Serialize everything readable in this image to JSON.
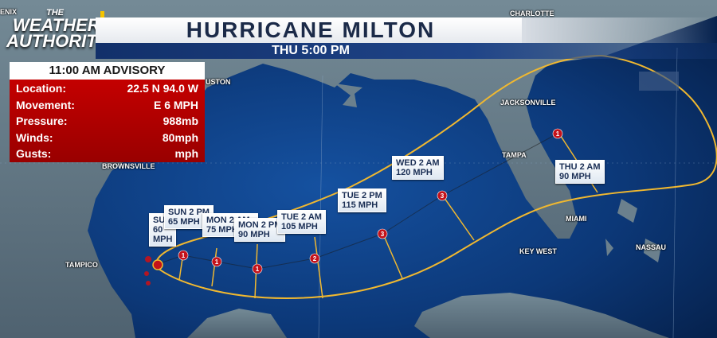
{
  "header": {
    "logo_line1": "THE",
    "logo_line2": "WEATHER",
    "logo_line3": "AUTHORITY",
    "title": "HURRICANE MILTON",
    "subtitle": "THU 5:00 PM"
  },
  "advisory": {
    "title": "11:00 AM ADVISORY",
    "rows": [
      {
        "label": "Location:",
        "value": "22.5 N 94.0 W"
      },
      {
        "label": "Movement:",
        "value": "E 6 MPH"
      },
      {
        "label": "Pressure:",
        "value": "988mb"
      },
      {
        "label": "Winds:",
        "value": "80mph"
      },
      {
        "label": "Gusts:",
        "value": "mph"
      }
    ]
  },
  "cities": [
    "ENIX",
    "CHARLOTTE",
    "USTON",
    "JACKSONVILLE",
    "TAMPA",
    "BROWNSVILLE",
    "MIAMI",
    "KEY WEST",
    "NASSAU",
    "TAMPICO"
  ],
  "forecast_labels": [
    {
      "time": "SU",
      "speed": "60 MPH"
    },
    {
      "time": "SUN 2 PM",
      "speed": "65 MPH"
    },
    {
      "time": "MON 2 AM",
      "speed": "75 MPH"
    },
    {
      "time": "MON 2 PM",
      "speed": "90 MPH"
    },
    {
      "time": "TUE 2 AM",
      "speed": "105 MPH"
    },
    {
      "time": "TUE 2 PM",
      "speed": "115 MPH"
    },
    {
      "time": "WED 2 AM",
      "speed": "120 MPH"
    },
    {
      "time": "THU 2 AM",
      "speed": "90 MPH"
    }
  ],
  "storm_markers": [
    "1",
    "1",
    "1",
    "2",
    "3",
    "3",
    "1"
  ],
  "colors": {
    "ocean": "#0b3a7a",
    "land": "#5a7080",
    "cone_outline": "#f0b830",
    "marker": "#c4121a",
    "banner_accent": "#f5c400"
  }
}
